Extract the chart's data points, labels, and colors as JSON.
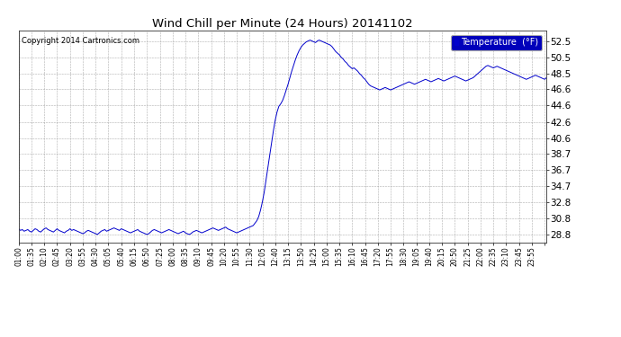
{
  "title": "Wind Chill per Minute (24 Hours) 20141102",
  "copyright": "Copyright 2014 Cartronics.com",
  "legend_label": "Temperature  (°F)",
  "line_color": "#0000cc",
  "background_color": "#ffffff",
  "grid_color": "#999999",
  "ylim": [
    27.8,
    53.8
  ],
  "yticks": [
    28.8,
    30.8,
    32.8,
    34.7,
    36.7,
    38.7,
    40.6,
    42.6,
    44.6,
    46.6,
    48.5,
    50.5,
    52.5
  ],
  "data_points": [
    29.5,
    29.3,
    29.4,
    29.2,
    29.3,
    29.4,
    29.2,
    29.1,
    29.3,
    29.5,
    29.4,
    29.2,
    29.1,
    29.3,
    29.5,
    29.6,
    29.4,
    29.3,
    29.2,
    29.1,
    29.3,
    29.5,
    29.3,
    29.2,
    29.1,
    29.0,
    29.2,
    29.3,
    29.5,
    29.3,
    29.4,
    29.3,
    29.2,
    29.1,
    29.0,
    28.9,
    29.0,
    29.2,
    29.3,
    29.2,
    29.1,
    29.0,
    28.9,
    28.8,
    29.0,
    29.2,
    29.3,
    29.4,
    29.2,
    29.3,
    29.4,
    29.5,
    29.6,
    29.5,
    29.4,
    29.3,
    29.5,
    29.4,
    29.3,
    29.2,
    29.1,
    29.0,
    29.1,
    29.2,
    29.3,
    29.4,
    29.2,
    29.1,
    29.0,
    28.9,
    28.8,
    28.9,
    29.1,
    29.3,
    29.4,
    29.3,
    29.2,
    29.1,
    29.0,
    29.1,
    29.2,
    29.3,
    29.4,
    29.3,
    29.2,
    29.1,
    29.0,
    28.9,
    29.0,
    29.1,
    29.2,
    29.0,
    28.9,
    28.8,
    28.9,
    29.1,
    29.2,
    29.3,
    29.2,
    29.1,
    29.0,
    29.1,
    29.2,
    29.3,
    29.4,
    29.5,
    29.6,
    29.5,
    29.4,
    29.3,
    29.4,
    29.5,
    29.6,
    29.7,
    29.5,
    29.4,
    29.3,
    29.2,
    29.1,
    29.0,
    29.1,
    29.2,
    29.3,
    29.4,
    29.5,
    29.6,
    29.7,
    29.8,
    29.9,
    30.2,
    30.5,
    31.0,
    31.8,
    32.8,
    34.0,
    35.5,
    37.0,
    38.5,
    40.0,
    41.5,
    42.8,
    43.8,
    44.5,
    44.8,
    45.2,
    45.8,
    46.5,
    47.2,
    48.0,
    48.8,
    49.5,
    50.2,
    50.8,
    51.3,
    51.7,
    52.0,
    52.2,
    52.4,
    52.5,
    52.6,
    52.5,
    52.4,
    52.3,
    52.5,
    52.6,
    52.5,
    52.4,
    52.3,
    52.2,
    52.1,
    52.0,
    51.8,
    51.5,
    51.2,
    51.0,
    50.8,
    50.5,
    50.3,
    50.0,
    49.8,
    49.5,
    49.3,
    49.1,
    49.2,
    49.0,
    48.8,
    48.5,
    48.3,
    48.0,
    47.8,
    47.5,
    47.2,
    47.0,
    46.9,
    46.8,
    46.7,
    46.6,
    46.5,
    46.6,
    46.7,
    46.8,
    46.7,
    46.6,
    46.5,
    46.6,
    46.7,
    46.8,
    46.9,
    47.0,
    47.1,
    47.2,
    47.3,
    47.4,
    47.5,
    47.4,
    47.3,
    47.2,
    47.3,
    47.4,
    47.5,
    47.6,
    47.7,
    47.8,
    47.7,
    47.6,
    47.5,
    47.6,
    47.7,
    47.8,
    47.9,
    47.8,
    47.7,
    47.6,
    47.7,
    47.8,
    47.9,
    48.0,
    48.1,
    48.2,
    48.1,
    48.0,
    47.9,
    47.8,
    47.7,
    47.6,
    47.7,
    47.8,
    47.9,
    48.0,
    48.2,
    48.4,
    48.6,
    48.8,
    49.0,
    49.2,
    49.4,
    49.5,
    49.4,
    49.3,
    49.2,
    49.3,
    49.4,
    49.3,
    49.2,
    49.1,
    49.0,
    48.9,
    48.8,
    48.7,
    48.6,
    48.5,
    48.4,
    48.3,
    48.2,
    48.1,
    48.0,
    47.9,
    47.8,
    47.9,
    48.0,
    48.1,
    48.2,
    48.3,
    48.2,
    48.1,
    48.0,
    47.9,
    47.8,
    48.0
  ],
  "x_tick_labels": [
    "01:00",
    "01:35",
    "02:10",
    "02:45",
    "03:20",
    "03:55",
    "04:30",
    "05:05",
    "05:40",
    "06:15",
    "06:50",
    "07:25",
    "08:00",
    "08:35",
    "09:10",
    "09:45",
    "10:20",
    "10:55",
    "11:30",
    "12:05",
    "12:40",
    "13:15",
    "13:50",
    "14:25",
    "15:00",
    "15:35",
    "16:10",
    "16:45",
    "17:20",
    "17:55",
    "18:30",
    "19:05",
    "19:40",
    "20:15",
    "20:50",
    "21:25",
    "22:00",
    "22:35",
    "23:10",
    "23:45",
    "23:55"
  ],
  "figsize": [
    6.9,
    3.75
  ],
  "dpi": 100
}
